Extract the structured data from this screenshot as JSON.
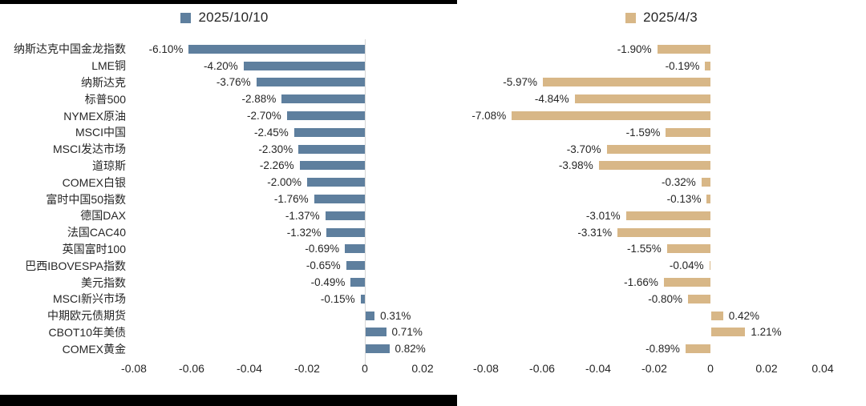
{
  "decorations": {
    "top_border_color": "#000000",
    "bottom_border_color": "#000000"
  },
  "chart_data": [
    {
      "type": "bar",
      "orientation": "horizontal",
      "title": "",
      "legend": "2025/10/10",
      "legend_position": "top-center",
      "bar_color": "#5e7f9e",
      "grid": false,
      "xlim": [
        -0.085,
        0.027
      ],
      "categories": [
        "纳斯达克中国金龙指数",
        "LME铜",
        "纳斯达克",
        "标普500",
        "NYMEX原油",
        "MSCI中国",
        "MSCI发达市场",
        "道琼斯",
        "COMEX白银",
        "富时中国50指数",
        "德国DAX",
        "法国CAC40",
        "英国富时100",
        "巴西IBOVESPA指数",
        "美元指数",
        "MSCI新兴市场",
        "中期欧元债期货",
        "CBOT10年美债",
        "COMEX黄金"
      ],
      "values": [
        -0.061,
        -0.042,
        -0.0376,
        -0.0288,
        -0.027,
        -0.0245,
        -0.023,
        -0.0226,
        -0.02,
        -0.0176,
        -0.0137,
        -0.0132,
        -0.0069,
        -0.0065,
        -0.0049,
        -0.0015,
        0.0031,
        0.0071,
        0.0082
      ],
      "value_labels": [
        "-6.10%",
        "-4.20%",
        "-3.76%",
        "-2.88%",
        "-2.70%",
        "-2.45%",
        "-2.30%",
        "-2.26%",
        "-2.00%",
        "-1.76%",
        "-1.37%",
        "-1.32%",
        "-0.69%",
        "-0.65%",
        "-0.49%",
        "-0.15%",
        "0.31%",
        "0.71%",
        "0.82%"
      ],
      "x_ticks": [
        -0.08,
        -0.06,
        -0.04,
        -0.02,
        0,
        0.02
      ],
      "x_tick_labels": [
        "-0.08",
        "-0.06",
        "-0.04",
        "-0.02",
        "0",
        "0.02"
      ]
    },
    {
      "type": "bar",
      "orientation": "horizontal",
      "title": "",
      "legend": "2025/4/3",
      "legend_position": "top-center",
      "bar_color": "#d8b787",
      "grid": false,
      "xlim": [
        -0.085,
        0.047
      ],
      "categories": [
        "纳斯达克中国金龙指数",
        "LME铜",
        "纳斯达克",
        "标普500",
        "NYMEX原油",
        "MSCI中国",
        "MSCI发达市场",
        "道琼斯",
        "COMEX白银",
        "富时中国50指数",
        "德国DAX",
        "法国CAC40",
        "英国富时100",
        "巴西IBOVESPA指数",
        "美元指数",
        "MSCI新兴市场",
        "中期欧元债期货",
        "CBOT10年美债",
        "COMEX黄金"
      ],
      "values": [
        -0.019,
        -0.0019,
        -0.0597,
        -0.0484,
        -0.0708,
        -0.0159,
        -0.037,
        -0.0398,
        -0.0032,
        -0.0013,
        -0.0301,
        -0.0331,
        -0.0155,
        -0.0004,
        -0.0166,
        -0.008,
        0.0042,
        0.0121,
        -0.0089
      ],
      "value_labels": [
        "-1.90%",
        "-0.19%",
        "-5.97%",
        "-4.84%",
        "-7.08%",
        "-1.59%",
        "-3.70%",
        "-3.98%",
        "-0.32%",
        "-0.13%",
        "-3.01%",
        "-3.31%",
        "-1.55%",
        "-0.04%",
        "-1.66%",
        "-0.80%",
        "0.42%",
        "1.21%",
        "-0.89%"
      ],
      "x_ticks": [
        -0.08,
        -0.06,
        -0.04,
        -0.02,
        0,
        0.02,
        0.04
      ],
      "x_tick_labels": [
        "-0.08",
        "-0.06",
        "-0.04",
        "-0.02",
        "0",
        "0.02",
        "0.04"
      ]
    }
  ]
}
